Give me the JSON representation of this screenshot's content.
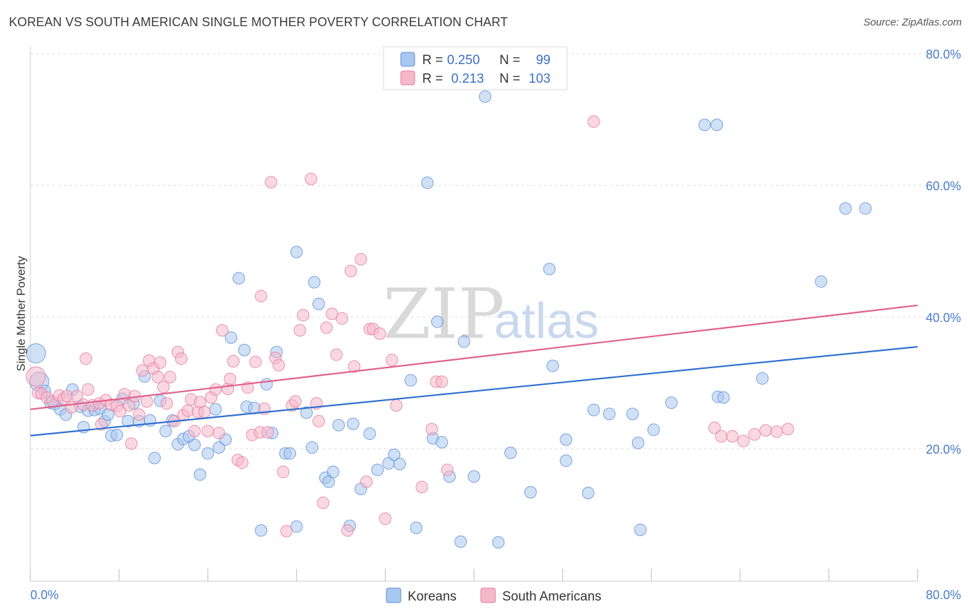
{
  "title": "KOREAN VS SOUTH AMERICAN SINGLE MOTHER POVERTY CORRELATION CHART",
  "source": "Source: ZipAtlas.com",
  "colors": {
    "blue": "#a9c8ef",
    "blue_stroke": "#5b8fd6",
    "blue_line": "#2f6fd0",
    "pink": "#f5b8cb",
    "pink_stroke": "#e27a9c",
    "pink_line": "#e0608a",
    "tick_text": "#4a7cc9"
  },
  "chart_data": {
    "type": "scatter",
    "xlim": [
      0,
      80
    ],
    "ylim": [
      0,
      80
    ],
    "xlabel": "",
    "ylabel": "Single Mother Poverty",
    "x_tick_labels": [
      "0.0%",
      "80.0%"
    ],
    "y_tick_labels": [
      "20.0%",
      "40.0%",
      "60.0%",
      "80.0%"
    ],
    "y_ticks": [
      20,
      40,
      60,
      80
    ],
    "grid": true,
    "legend": {
      "placement": "top-center",
      "rows": [
        {
          "r_label": "R =",
          "r_value": "0.250",
          "n_label": "N =",
          "n_value": "99"
        },
        {
          "r_label": "R =",
          "r_value": "0.213",
          "n_label": "N =",
          "n_value": "103"
        }
      ]
    },
    "series": [
      {
        "name": "Koreans",
        "trend": [
          [
            0,
            22.0
          ],
          [
            80,
            35.5
          ]
        ],
        "points": [
          [
            0.5,
            34.5
          ],
          [
            0.8,
            30.2
          ],
          [
            1.3,
            28.8
          ],
          [
            1.8,
            27.0
          ],
          [
            2.2,
            26.8
          ],
          [
            2.7,
            26.0
          ],
          [
            3.2,
            25.2
          ],
          [
            3.8,
            29.0
          ],
          [
            4.5,
            26.4
          ],
          [
            4.8,
            23.3
          ],
          [
            5.2,
            25.8
          ],
          [
            5.8,
            25.9
          ],
          [
            6.3,
            26.1
          ],
          [
            6.7,
            24.2
          ],
          [
            7.0,
            25.2
          ],
          [
            7.3,
            22.0
          ],
          [
            7.8,
            22.1
          ],
          [
            8.3,
            27.6
          ],
          [
            8.8,
            24.2
          ],
          [
            9.3,
            26.9
          ],
          [
            9.8,
            24.2
          ],
          [
            10.3,
            31.0
          ],
          [
            10.8,
            24.3
          ],
          [
            11.2,
            18.6
          ],
          [
            11.7,
            27.3
          ],
          [
            12.2,
            22.7
          ],
          [
            12.8,
            24.3
          ],
          [
            13.3,
            20.7
          ],
          [
            13.8,
            21.5
          ],
          [
            14.3,
            21.9
          ],
          [
            14.8,
            20.6
          ],
          [
            15.3,
            16.1
          ],
          [
            16.0,
            19.3
          ],
          [
            16.7,
            26.0
          ],
          [
            17.0,
            20.2
          ],
          [
            17.6,
            21.4
          ],
          [
            18.1,
            36.9
          ],
          [
            18.8,
            45.9
          ],
          [
            19.3,
            35.0
          ],
          [
            19.5,
            26.4
          ],
          [
            20.2,
            26.2
          ],
          [
            20.8,
            7.6
          ],
          [
            21.3,
            29.8
          ],
          [
            21.8,
            22.4
          ],
          [
            22.2,
            34.7
          ],
          [
            23.0,
            19.3
          ],
          [
            23.4,
            19.3
          ],
          [
            24.0,
            8.2
          ],
          [
            24.0,
            49.9
          ],
          [
            24.9,
            25.5
          ],
          [
            25.4,
            20.2
          ],
          [
            25.6,
            45.3
          ],
          [
            26.0,
            42.0
          ],
          [
            26.6,
            15.6
          ],
          [
            26.9,
            15.0
          ],
          [
            27.3,
            16.5
          ],
          [
            27.8,
            23.6
          ],
          [
            28.8,
            8.3
          ],
          [
            29.1,
            23.8
          ],
          [
            29.8,
            13.9
          ],
          [
            30.6,
            22.3
          ],
          [
            31.3,
            16.8
          ],
          [
            32.3,
            17.8
          ],
          [
            32.8,
            19.1
          ],
          [
            33.3,
            17.7
          ],
          [
            34.3,
            30.4
          ],
          [
            34.8,
            8.0
          ],
          [
            35.8,
            60.4
          ],
          [
            36.3,
            21.6
          ],
          [
            36.7,
            39.3
          ],
          [
            37.1,
            21.0
          ],
          [
            37.8,
            15.8
          ],
          [
            38.8,
            5.9
          ],
          [
            39.1,
            36.3
          ],
          [
            40.0,
            15.8
          ],
          [
            41.0,
            73.5
          ],
          [
            42.2,
            5.8
          ],
          [
            43.3,
            19.4
          ],
          [
            45.1,
            13.4
          ],
          [
            46.8,
            47.3
          ],
          [
            47.1,
            32.6
          ],
          [
            48.3,
            21.4
          ],
          [
            48.3,
            18.2
          ],
          [
            50.3,
            13.3
          ],
          [
            50.8,
            25.9
          ],
          [
            52.2,
            25.3
          ],
          [
            54.3,
            25.3
          ],
          [
            54.8,
            20.9
          ],
          [
            55.0,
            7.7
          ],
          [
            56.2,
            22.9
          ],
          [
            57.8,
            27.0
          ],
          [
            60.8,
            69.2
          ],
          [
            61.9,
            69.2
          ],
          [
            62.0,
            27.9
          ],
          [
            62.5,
            27.8
          ],
          [
            66.0,
            30.7
          ],
          [
            71.3,
            45.4
          ],
          [
            73.5,
            56.5
          ],
          [
            75.3,
            56.5
          ]
        ]
      },
      {
        "name": "South Americans",
        "trend": [
          [
            0,
            26.0
          ],
          [
            80,
            41.8
          ]
        ],
        "points": [
          [
            0.5,
            31.0
          ],
          [
            0.7,
            28.5
          ],
          [
            1.0,
            28.4
          ],
          [
            1.5,
            27.8
          ],
          [
            2.0,
            27.2
          ],
          [
            2.6,
            28.1
          ],
          [
            3.0,
            27.6
          ],
          [
            3.3,
            28.0
          ],
          [
            3.7,
            26.3
          ],
          [
            4.2,
            28.0
          ],
          [
            4.8,
            26.7
          ],
          [
            5.0,
            33.7
          ],
          [
            5.2,
            29.0
          ],
          [
            5.6,
            26.6
          ],
          [
            6.2,
            26.9
          ],
          [
            6.4,
            23.7
          ],
          [
            6.8,
            27.4
          ],
          [
            7.3,
            26.7
          ],
          [
            7.8,
            26.5
          ],
          [
            8.1,
            25.7
          ],
          [
            8.5,
            28.3
          ],
          [
            8.9,
            26.6
          ],
          [
            9.1,
            20.8
          ],
          [
            9.4,
            28.0
          ],
          [
            9.8,
            25.2
          ],
          [
            10.1,
            31.9
          ],
          [
            10.5,
            27.2
          ],
          [
            10.7,
            33.4
          ],
          [
            11.1,
            32.2
          ],
          [
            11.5,
            30.9
          ],
          [
            11.7,
            33.1
          ],
          [
            12.0,
            29.4
          ],
          [
            12.3,
            26.9
          ],
          [
            12.6,
            30.9
          ],
          [
            13.0,
            24.2
          ],
          [
            13.3,
            34.7
          ],
          [
            13.6,
            33.7
          ],
          [
            13.8,
            25.1
          ],
          [
            14.2,
            25.8
          ],
          [
            14.5,
            27.5
          ],
          [
            14.8,
            22.7
          ],
          [
            15.1,
            25.6
          ],
          [
            15.3,
            27.1
          ],
          [
            15.7,
            25.6
          ],
          [
            16.0,
            22.7
          ],
          [
            16.3,
            27.8
          ],
          [
            16.7,
            29.0
          ],
          [
            17.0,
            22.4
          ],
          [
            17.3,
            38.0
          ],
          [
            17.8,
            29.1
          ],
          [
            18.0,
            30.6
          ],
          [
            18.3,
            33.3
          ],
          [
            18.7,
            18.3
          ],
          [
            19.1,
            17.9
          ],
          [
            19.6,
            29.3
          ],
          [
            20.0,
            22.1
          ],
          [
            20.3,
            33.2
          ],
          [
            20.7,
            22.5
          ],
          [
            20.8,
            43.2
          ],
          [
            21.1,
            26.1
          ],
          [
            21.4,
            22.5
          ],
          [
            21.7,
            60.5
          ],
          [
            22.1,
            33.8
          ],
          [
            22.4,
            32.7
          ],
          [
            22.8,
            16.5
          ],
          [
            23.1,
            7.5
          ],
          [
            23.6,
            26.6
          ],
          [
            23.9,
            27.2
          ],
          [
            24.3,
            38.0
          ],
          [
            24.6,
            40.3
          ],
          [
            25.3,
            61.0
          ],
          [
            25.8,
            26.9
          ],
          [
            26.0,
            24.2
          ],
          [
            26.4,
            11.8
          ],
          [
            26.7,
            38.4
          ],
          [
            27.2,
            40.5
          ],
          [
            27.6,
            34.3
          ],
          [
            28.1,
            39.8
          ],
          [
            28.6,
            7.6
          ],
          [
            28.9,
            47.0
          ],
          [
            29.2,
            32.5
          ],
          [
            29.8,
            48.8
          ],
          [
            30.3,
            15.0
          ],
          [
            30.6,
            38.2
          ],
          [
            30.9,
            38.2
          ],
          [
            31.5,
            37.5
          ],
          [
            32.0,
            9.4
          ],
          [
            32.6,
            33.5
          ],
          [
            33.0,
            26.6
          ],
          [
            35.3,
            14.2
          ],
          [
            36.2,
            23.0
          ],
          [
            36.6,
            30.2
          ],
          [
            37.1,
            30.2
          ],
          [
            37.6,
            16.8
          ],
          [
            50.8,
            69.7
          ],
          [
            61.7,
            23.2
          ],
          [
            62.3,
            21.9
          ],
          [
            63.3,
            21.9
          ],
          [
            64.3,
            21.2
          ],
          [
            65.3,
            22.2
          ],
          [
            66.3,
            22.8
          ],
          [
            67.3,
            22.6
          ],
          [
            68.3,
            23.0
          ]
        ]
      }
    ]
  }
}
